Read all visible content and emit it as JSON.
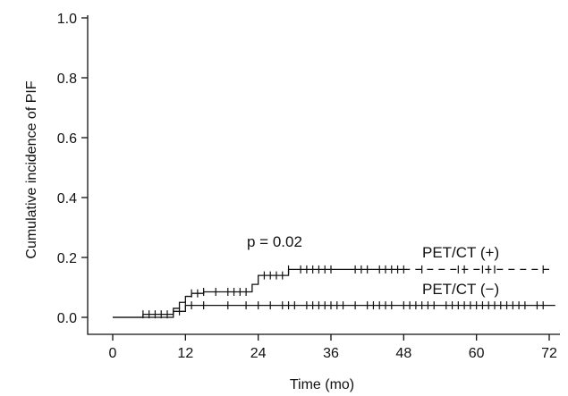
{
  "chart_data": {
    "type": "line",
    "title": "",
    "xlabel": "Time (mo)",
    "ylabel": "Cumulative incidence of PIF",
    "xlim": [
      0,
      72
    ],
    "ylim": [
      0,
      1.0
    ],
    "x_ticks": [
      0,
      12,
      24,
      36,
      48,
      60,
      72
    ],
    "x_tick_labels": [
      "0",
      "12",
      "24",
      "36",
      "48",
      "60",
      "72"
    ],
    "y_ticks": [
      0.0,
      0.2,
      0.4,
      0.6,
      0.8,
      1.0
    ],
    "y_tick_labels": [
      "0.0",
      "0.2",
      "0.4",
      "0.6",
      "0.8",
      "1.0"
    ],
    "grid": false,
    "annotation": "p = 0.02",
    "series": [
      {
        "name": "PET/CT (+)",
        "style": "solid-then-dashed",
        "steps": [
          [
            0,
            0.0
          ],
          [
            5,
            0.01
          ],
          [
            10,
            0.03
          ],
          [
            11,
            0.05
          ],
          [
            12,
            0.07
          ],
          [
            13,
            0.08
          ],
          [
            15,
            0.085
          ],
          [
            23,
            0.11
          ],
          [
            24,
            0.14
          ],
          [
            29,
            0.16
          ],
          [
            72,
            0.16
          ]
        ],
        "censored": [
          5,
          6,
          7,
          8,
          9,
          13,
          14,
          15,
          17,
          19,
          20,
          21,
          22,
          25,
          26,
          27,
          28,
          29,
          31,
          32,
          33,
          34,
          35,
          36,
          40,
          41,
          42,
          44,
          45,
          46,
          47,
          48,
          51,
          57,
          58,
          61,
          62,
          63,
          71
        ],
        "dashed_from": 48
      },
      {
        "name": "PET/CT (−)",
        "style": "solid",
        "steps": [
          [
            0,
            0.0
          ],
          [
            10,
            0.02
          ],
          [
            12,
            0.04
          ],
          [
            73,
            0.04
          ]
        ],
        "censored": [
          11,
          12,
          13,
          15,
          19,
          22,
          24,
          26,
          28,
          29,
          30,
          32,
          33,
          34,
          35,
          36,
          37,
          38,
          40,
          42,
          43,
          44,
          45,
          46,
          48,
          49,
          50,
          51,
          52,
          53,
          55,
          56,
          57,
          58,
          59,
          60,
          61,
          62,
          63,
          64,
          65,
          66,
          67,
          68,
          70,
          71
        ]
      }
    ]
  }
}
